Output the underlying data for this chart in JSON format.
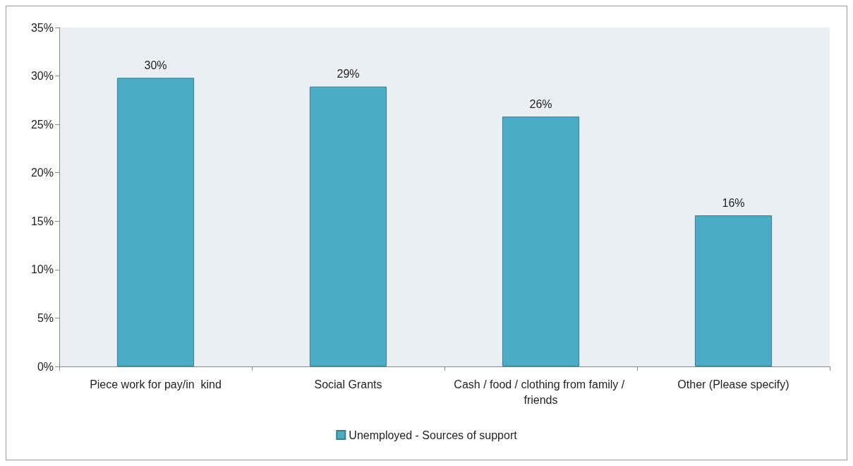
{
  "chart_data": {
    "type": "bar",
    "categories": [
      "Piece work for pay/in  kind",
      "Social Grants",
      "Cash / food / clothing from family / friends",
      "Other (Please specify)"
    ],
    "series": [
      {
        "name": "Unemployed - Sources of support",
        "color": "#4bacc6",
        "values": [
          29.8,
          28.9,
          25.8,
          15.6
        ],
        "value_labels": [
          "30%",
          "29%",
          "26%",
          "16%"
        ]
      }
    ],
    "ylim": [
      0,
      35
    ],
    "yticks": [
      {
        "value": 0,
        "label": "0%"
      },
      {
        "value": 5,
        "label": "5%"
      },
      {
        "value": 10,
        "label": "10%"
      },
      {
        "value": 15,
        "label": "15%"
      },
      {
        "value": 20,
        "label": "20%"
      },
      {
        "value": 25,
        "label": "25%"
      },
      {
        "value": 30,
        "label": "30%"
      },
      {
        "value": 35,
        "label": "35%"
      }
    ],
    "grid": false,
    "legend": "bottom"
  }
}
